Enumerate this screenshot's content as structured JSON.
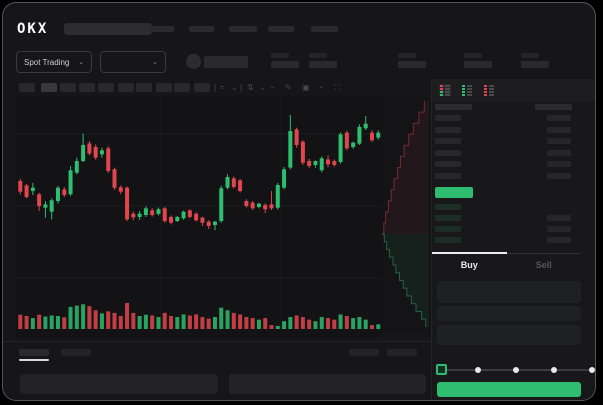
{
  "header": {
    "logo_text": "OKX"
  },
  "market_bar": {
    "market_type_label": "Spot Trading"
  },
  "toolbar": {
    "icons": [
      "indicator-icon",
      "chevron-down-icon",
      "divider",
      "interval-icon",
      "chevron-down-icon",
      "line-style-icon",
      "draw-icon",
      "camera-icon",
      "history-icon",
      "fullscreen-icon"
    ]
  },
  "order_book": {
    "mode_icons": [
      "book-combined-icon",
      "book-bids-icon",
      "book-asks-icon"
    ]
  },
  "order_panel": {
    "buy_tab_label": "Buy",
    "sell_tab_label": "Sell",
    "slider_stops": 5
  },
  "colors": {
    "accent_green": "#2EBD70",
    "candle_green": "#2FBD70",
    "candle_red": "#E0464E",
    "window_bg": "#161618",
    "chart_bg": "#131315",
    "grid": "rgba(255,255,255,0.045)"
  },
  "chart_data": {
    "type": "candlestick",
    "title": "",
    "axes_visible": false,
    "price_scale": [
      0,
      100
    ],
    "candles": [
      [
        41.7,
        43.5,
        30.5,
        32.8
      ],
      [
        38,
        39.4,
        27.2,
        28.3
      ],
      [
        33.3,
        40,
        30,
        36.1
      ],
      [
        30.6,
        31.9,
        16.7,
        20.8
      ],
      [
        19.4,
        25,
        11.1,
        22.2
      ],
      [
        16.1,
        27.2,
        9.7,
        25.6
      ],
      [
        25,
        37.5,
        22.8,
        36.1
      ],
      [
        34.7,
        36.7,
        28.3,
        30
      ],
      [
        30.6,
        54.2,
        29.2,
        50.6
      ],
      [
        48.6,
        61.1,
        47.2,
        58.3
      ],
      [
        58.3,
        81.1,
        57.5,
        71.7
      ],
      [
        73,
        75,
        63,
        64.5
      ],
      [
        70,
        72.2,
        59.4,
        61.1
      ],
      [
        63.9,
        69.4,
        61.1,
        67.2
      ],
      [
        68.9,
        70.6,
        48.3,
        50
      ],
      [
        51.4,
        52.8,
        34.4,
        36.1
      ],
      [
        36.4,
        38,
        30.6,
        32.8
      ],
      [
        36.1,
        37.2,
        8.3,
        9.7
      ],
      [
        14.4,
        16.1,
        8.9,
        11.4
      ],
      [
        11.7,
        16.7,
        9.4,
        14.4
      ],
      [
        13.3,
        20.6,
        11.7,
        18.9
      ],
      [
        17.2,
        19,
        12,
        13.3
      ],
      [
        14.2,
        19.5,
        13,
        18.1
      ],
      [
        18.9,
        20,
        6.9,
        8.3
      ],
      [
        11.7,
        13,
        5.5,
        6.9
      ],
      [
        8.3,
        12.5,
        7.5,
        11.7
      ],
      [
        10.6,
        17,
        9.5,
        16.1
      ],
      [
        17.2,
        18.3,
        10.5,
        11.7
      ],
      [
        14.4,
        15.5,
        8,
        8.9
      ],
      [
        11.1,
        12,
        4.2,
        6.9
      ],
      [
        7.8,
        9,
        1.7,
        4.2
      ],
      [
        5,
        8.5,
        0.6,
        7.8
      ],
      [
        8.3,
        37.8,
        6.9,
        35.6
      ],
      [
        36.1,
        47.2,
        34.7,
        45
      ],
      [
        43.9,
        45.5,
        35.5,
        36.7
      ],
      [
        42.2,
        43.5,
        32,
        33.3
      ],
      [
        25,
        26.5,
        19.5,
        20.8
      ],
      [
        23.6,
        25,
        17.5,
        18.9
      ],
      [
        20,
        23.5,
        19,
        22.8
      ],
      [
        21.7,
        23,
        15,
        18.1
      ],
      [
        22.2,
        33.3,
        17.5,
        18.9
      ],
      [
        19.4,
        40,
        17.8,
        38.3
      ],
      [
        36.1,
        53.3,
        34.7,
        51.4
      ],
      [
        52.8,
        96.7,
        51.4,
        83.3
      ],
      [
        84.7,
        86.1,
        69.4,
        71.7
      ],
      [
        74.4,
        75.6,
        55,
        56.9
      ],
      [
        58.3,
        60,
        52.5,
        54.2
      ],
      [
        55,
        58.8,
        52.8,
        58.3
      ],
      [
        50.6,
        62.2,
        48.9,
        60.6
      ],
      [
        59.7,
        63,
        53,
        55.6
      ],
      [
        58.3,
        59.5,
        53.5,
        55
      ],
      [
        57.5,
        82.2,
        56.1,
        80.6
      ],
      [
        81.9,
        83.6,
        67.2,
        68.9
      ],
      [
        70,
        74.5,
        68.5,
        73.6
      ],
      [
        72.8,
        88.9,
        71.7,
        86.7
      ],
      [
        85.6,
        95.8,
        84.2,
        89.4
      ],
      [
        81.9,
        84,
        74.2,
        75.6
      ],
      [
        77.8,
        83.9,
        76.1,
        81.9
      ]
    ],
    "volumes": [
      0.55,
      0.5,
      0.42,
      0.55,
      0.48,
      0.52,
      0.5,
      0.45,
      0.85,
      0.9,
      0.95,
      0.88,
      0.72,
      0.6,
      0.68,
      0.62,
      0.5,
      1.0,
      0.62,
      0.5,
      0.55,
      0.52,
      0.46,
      0.62,
      0.5,
      0.46,
      0.56,
      0.52,
      0.56,
      0.46,
      0.4,
      0.46,
      0.82,
      0.72,
      0.62,
      0.56,
      0.46,
      0.42,
      0.36,
      0.42,
      0.15,
      0.12,
      0.3,
      0.46,
      0.52,
      0.46,
      0.36,
      0.3,
      0.46,
      0.42,
      0.36,
      0.56,
      0.5,
      0.42,
      0.46,
      0.36,
      0.15,
      0.18
    ],
    "depth": {
      "asks": [
        0.04,
        0.08,
        0.14,
        0.2,
        0.26,
        0.34,
        0.4,
        0.48,
        0.58,
        0.68,
        0.8,
        0.92
      ],
      "bids": [
        0.05,
        0.1,
        0.16,
        0.24,
        0.3,
        0.38,
        0.46,
        0.54,
        0.64,
        0.74,
        0.86,
        0.95
      ]
    }
  }
}
